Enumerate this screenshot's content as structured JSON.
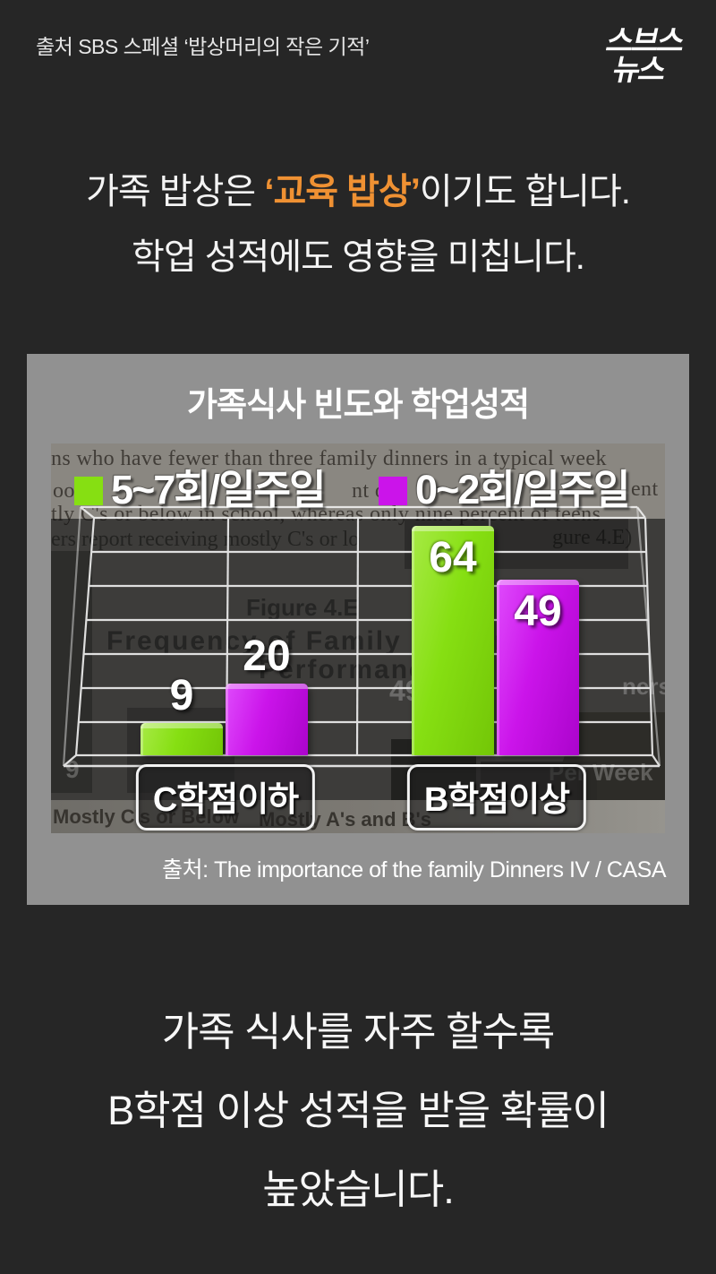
{
  "header": {
    "source_text": "출처 SBS 스페셜 ‘밥상머리의 작은 기적’",
    "logo": {
      "line1": "스브스",
      "line2": "뉴스"
    }
  },
  "headline": {
    "line1_pre": "가족 밥상은 ",
    "line1_highlight": "‘교육 밥상’",
    "line1_post": "이기도 합니다.",
    "line2": "학업 성적에도 영향을 미칩니다."
  },
  "panel": {
    "title": "가족식사 빈도와 학업성적",
    "source_text": "출처: The importance of the family Dinners IV / CASA"
  },
  "photo": {
    "doc_line1": "ns who have fewer than three family dinners in a typical week",
    "doc_line2_left": "oor",
    "doc_line2_mid": "nt o",
    "doc_line2_right": "ent",
    "doc_line3": "tly C's or below in school, whereas only nine percent of teens",
    "doc_line4_left": "ers report receiving mostly C's or lo",
    "doc_line4_right": "gure 4.E)",
    "ghost_figure": "Figure 4.E",
    "ghost_frequency": "Frequency of Family Dinners",
    "ghost_performance": "Performance",
    "ghost_49": "49",
    "ghost_ners": "ners",
    "ghost_per_week": "Per Week",
    "ghost_9": "9",
    "doc_bottom_left": "Mostly C's or Below",
    "doc_bottom_right": "Mostly A's and B's"
  },
  "chart_data": {
    "type": "bar",
    "title": "가족식사 빈도와 학업성적",
    "categories": [
      "C학점이하",
      "B학점이상"
    ],
    "series": [
      {
        "name": "5~7회/일주일",
        "color": "#86df12",
        "values": [
          9,
          64
        ]
      },
      {
        "name": "0~2회/일주일",
        "color": "#cb14ea",
        "values": [
          20,
          49
        ]
      }
    ],
    "ylim": [
      0,
      70
    ],
    "grid": true,
    "legend_position": "top",
    "source": "The importance of the family Dinners IV / CASA"
  },
  "caption": {
    "line1": "가족 식사를 자주 할수록",
    "line2": "B학점 이상 성적을 받을 확률이",
    "line3": "높았습니다."
  },
  "colors": {
    "page_bg": "#262626",
    "panel_gray": "#919191",
    "accent_orange": "#ef9133",
    "series_green": "#86df12",
    "series_magenta": "#cb14ea"
  }
}
